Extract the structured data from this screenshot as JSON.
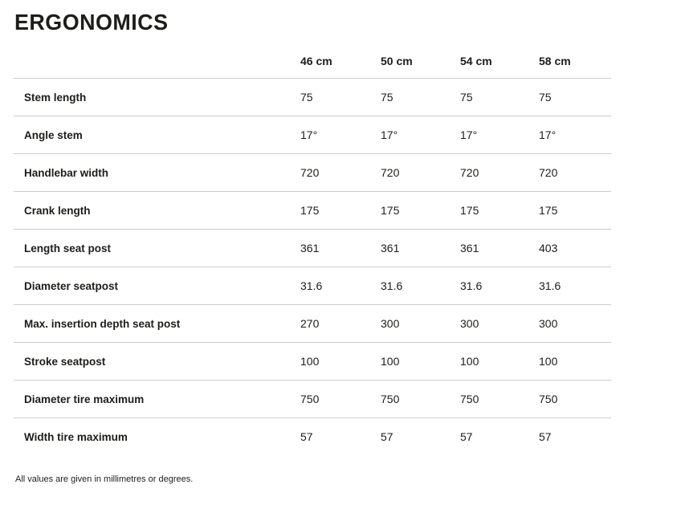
{
  "page": {
    "title": "ERGONOMICS",
    "footnote": "All values are given in millimetres or degrees."
  },
  "colors": {
    "text": "#1d1d1b",
    "divider": "#cccccc",
    "background": "#ffffff"
  },
  "table": {
    "label_column_header": "",
    "columns": [
      "46 cm",
      "50 cm",
      "54 cm",
      "58 cm"
    ],
    "rows": [
      {
        "label": "Stem length",
        "values": [
          "75",
          "75",
          "75",
          "75"
        ]
      },
      {
        "label": "Angle stem",
        "values": [
          "17°",
          "17°",
          "17°",
          "17°"
        ]
      },
      {
        "label": "Handlebar width",
        "values": [
          "720",
          "720",
          "720",
          "720"
        ]
      },
      {
        "label": "Crank length",
        "values": [
          "175",
          "175",
          "175",
          "175"
        ]
      },
      {
        "label": "Length seat post",
        "values": [
          "361",
          "361",
          "361",
          "403"
        ]
      },
      {
        "label": "Diameter seatpost",
        "values": [
          "31.6",
          "31.6",
          "31.6",
          "31.6"
        ]
      },
      {
        "label": "Max. insertion depth seat post",
        "values": [
          "270",
          "300",
          "300",
          "300"
        ]
      },
      {
        "label": "Stroke seatpost",
        "values": [
          "100",
          "100",
          "100",
          "100"
        ]
      },
      {
        "label": "Diameter tire maximum",
        "values": [
          "750",
          "750",
          "750",
          "750"
        ]
      },
      {
        "label": "Width tire maximum",
        "values": [
          "57",
          "57",
          "57",
          "57"
        ]
      }
    ]
  }
}
